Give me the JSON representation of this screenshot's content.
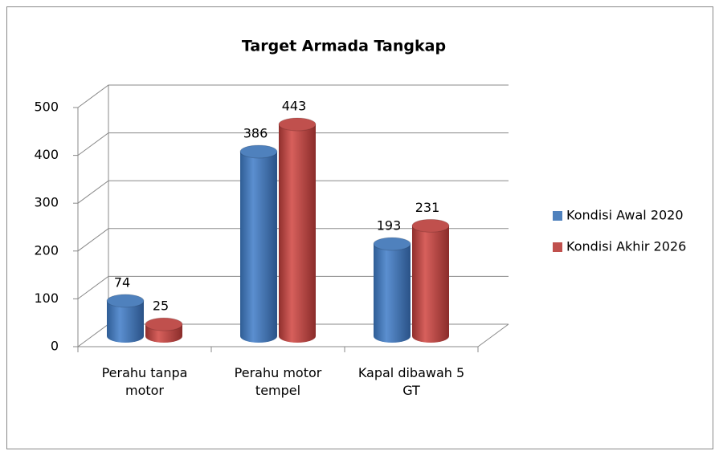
{
  "chart_data": {
    "type": "bar3d",
    "title": "Target Armada Tangkap",
    "categories": [
      "Perahu tanpa motor",
      "Perahu motor tempel",
      "Kapal dibawah 5 GT"
    ],
    "series": [
      {
        "name": "Kondisi Awal 2020",
        "color": "#4f81bd",
        "values": [
          74,
          386,
          193
        ]
      },
      {
        "name": "Kondisi Akhir 2026",
        "color": "#c0504d",
        "values": [
          25,
          443,
          231
        ]
      }
    ],
    "ylim": [
      0,
      500
    ],
    "yticks": [
      0,
      100,
      200,
      300,
      400,
      500
    ],
    "grid": true,
    "legend": "right"
  }
}
